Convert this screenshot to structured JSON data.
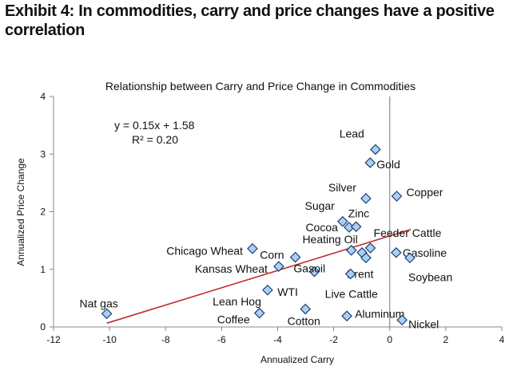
{
  "heading": "Exhibit 4: In commodities, carry and price changes have a positive correlation",
  "chart_data": {
    "type": "scatter",
    "title": "Relationship between Carry and Price Change in Commodities",
    "xlabel": "Annualized Carry",
    "ylabel": "Annualized Price Change",
    "xlim": [
      -12,
      4
    ],
    "ylim": [
      0,
      4
    ],
    "xticks": [
      -12,
      -10,
      -8,
      -6,
      -4,
      -2,
      0,
      2,
      4
    ],
    "yticks": [
      0,
      1,
      2,
      3,
      4
    ],
    "grid": false,
    "marker_color": "#a9d0f5",
    "marker_edge": "#1f3f6f",
    "trendline": {
      "slope": 0.15,
      "intercept": 1.58,
      "x_range": [
        -10.1,
        0.75
      ],
      "color": "#c0282a",
      "equation": "y = 0.15x + 1.58",
      "r2": "R² = 0.20"
    },
    "points": [
      {
        "label": "Lead",
        "x": -0.51,
        "y": 3.08
      },
      {
        "label": "Gold",
        "x": -0.7,
        "y": 2.85
      },
      {
        "label": "Silver",
        "x": -0.85,
        "y": 2.23
      },
      {
        "label": "Copper",
        "x": 0.25,
        "y": 2.27
      },
      {
        "label": "Sugar",
        "x": -1.68,
        "y": 1.83
      },
      {
        "label": "Cocoa",
        "x": -1.45,
        "y": 1.73
      },
      {
        "label": "Zinc",
        "x": -1.2,
        "y": 1.74
      },
      {
        "label": "Heating Oil",
        "x": -1.37,
        "y": 1.33
      },
      {
        "label": "",
        "x": -0.99,
        "y": 1.29
      },
      {
        "label": "Feeder Cattle",
        "x": -0.69,
        "y": 1.37
      },
      {
        "label": "Brent",
        "x": -0.85,
        "y": 1.2
      },
      {
        "label": "Gasoline",
        "x": 0.23,
        "y": 1.29
      },
      {
        "label": "Soybean",
        "x": 0.72,
        "y": 1.2
      },
      {
        "label": "Corn",
        "x": -3.37,
        "y": 1.21
      },
      {
        "label": "Chicago Wheat",
        "x": -4.9,
        "y": 1.36
      },
      {
        "label": "Kansas Wheat",
        "x": -3.96,
        "y": 1.05
      },
      {
        "label": "Gasoil",
        "x": -2.69,
        "y": 0.96
      },
      {
        "label": "Live Cattle",
        "x": -1.4,
        "y": 0.92
      },
      {
        "label": "WTI",
        "x": -4.36,
        "y": 0.64
      },
      {
        "label": "Lean Hog",
        "x": -4.36,
        "y": 0.64
      },
      {
        "label": "Coffee",
        "x": -4.65,
        "y": 0.24
      },
      {
        "label": "Cotton",
        "x": -3.01,
        "y": 0.31
      },
      {
        "label": "Aluminum",
        "x": -1.53,
        "y": 0.19
      },
      {
        "label": "Nickel",
        "x": 0.44,
        "y": 0.12
      },
      {
        "label": "Nat gas",
        "x": -10.1,
        "y": 0.23
      }
    ]
  }
}
